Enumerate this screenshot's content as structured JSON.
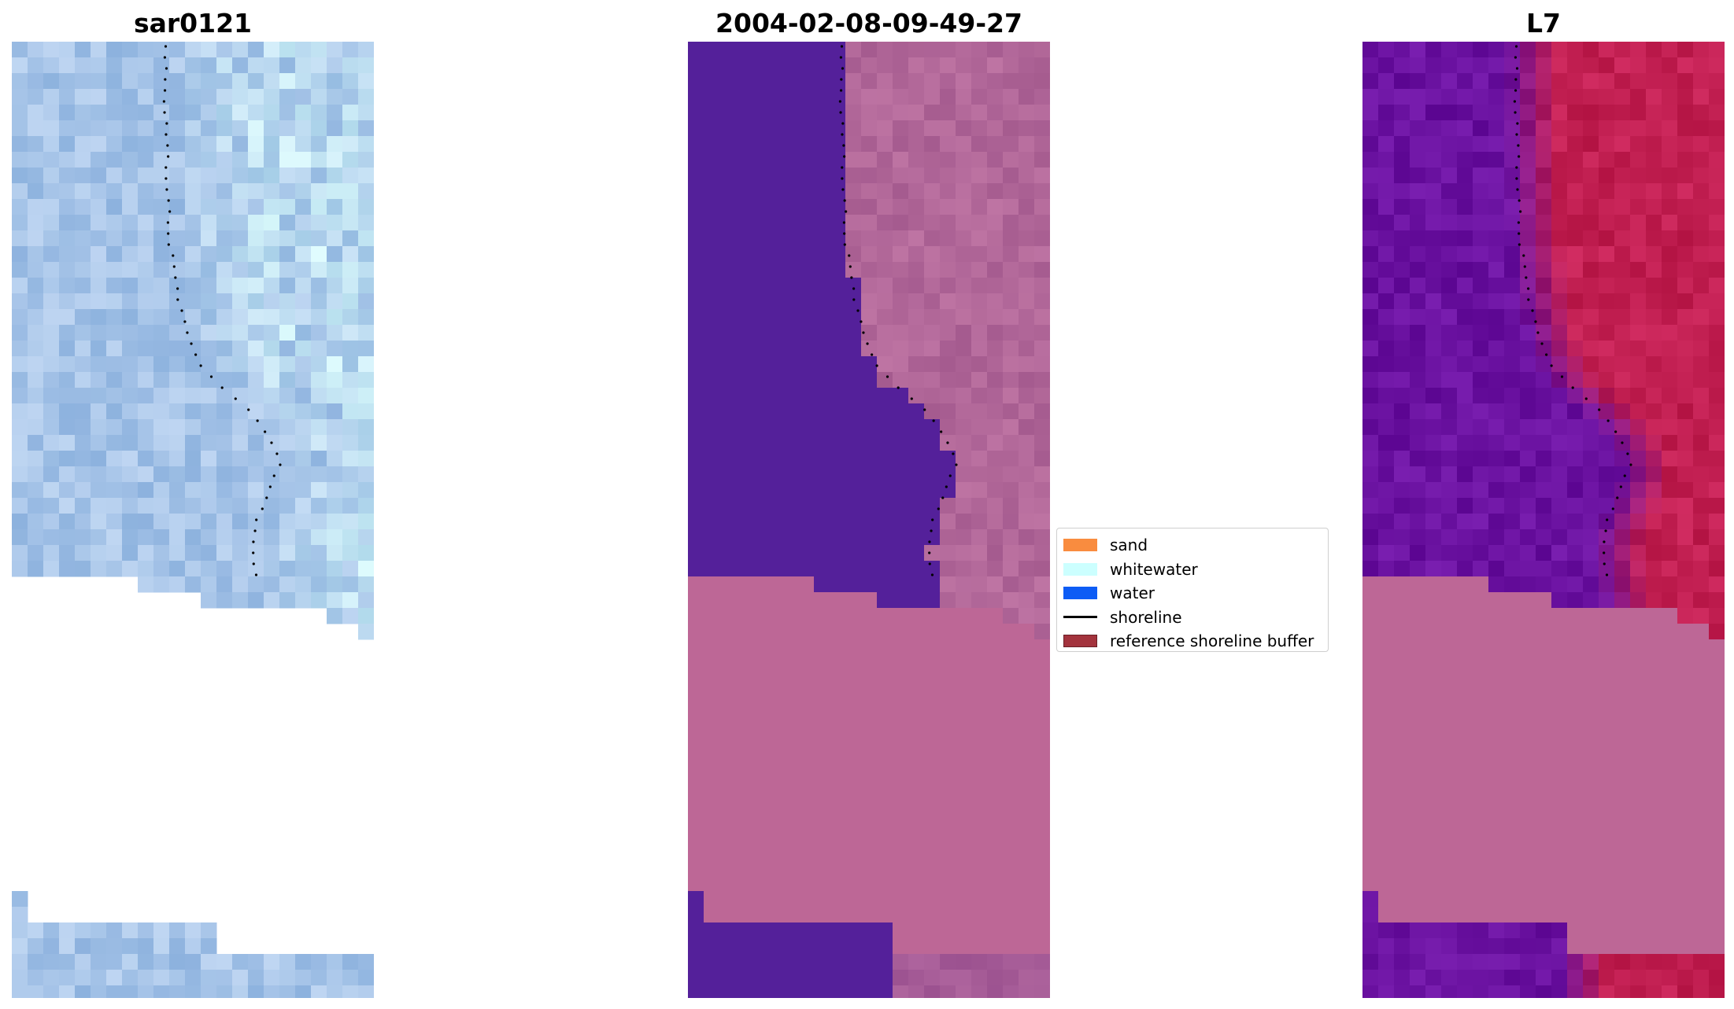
{
  "panels": [
    {
      "title": "sar0121"
    },
    {
      "title": "2004-02-08-09-49-27"
    },
    {
      "title": "L7"
    }
  ],
  "legend": {
    "items": [
      {
        "label": "sand",
        "kind": "patch",
        "color": "#f98c3f",
        "edge": "#f98c3f"
      },
      {
        "label": "whitewater",
        "kind": "patch",
        "color": "#ccffff",
        "edge": "#ccffff"
      },
      {
        "label": "water",
        "kind": "patch",
        "color": "#0d5cf5",
        "edge": "#0d5cf5"
      },
      {
        "label": "shoreline",
        "kind": "line",
        "color": "#000000"
      },
      {
        "label": "reference shoreline buffer",
        "kind": "patch",
        "color": "#a3333d",
        "edge": "#6a1f26"
      }
    ]
  },
  "colors": {
    "rgb_base": "#a6c4e8",
    "class_water": "#54209a",
    "class_land": "#b96a99",
    "nodata_mask": "#bd6796",
    "index_water": "#6a0fa0",
    "index_land": "#c21d52"
  }
}
